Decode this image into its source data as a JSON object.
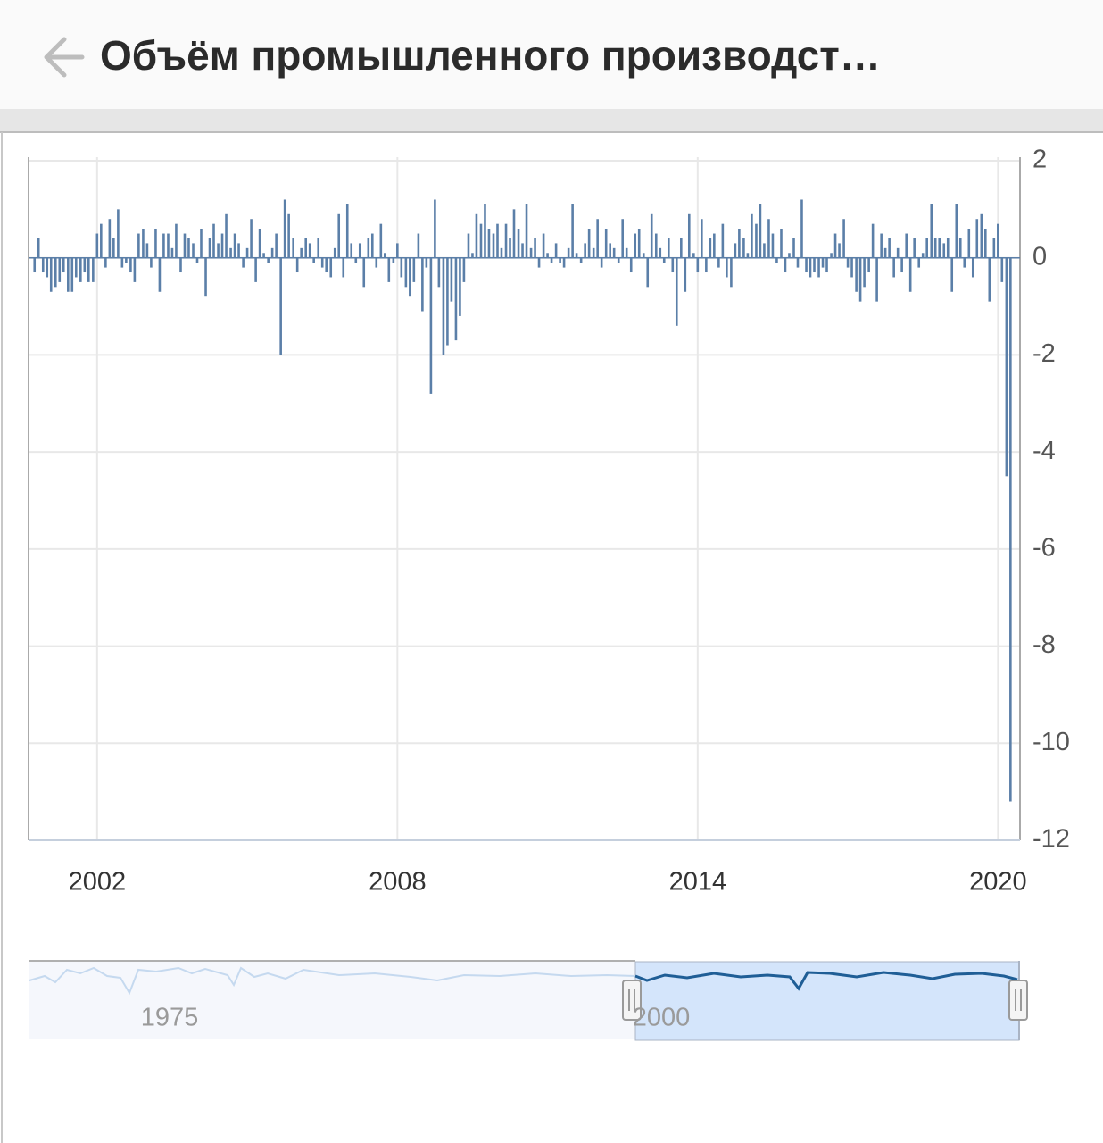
{
  "header": {
    "title": "Объём промышленного производст…"
  },
  "chart_data": {
    "type": "bar",
    "color": "#5b7fa8",
    "grid": true,
    "xlim": [
      2000.63,
      2020.44
    ],
    "xticks": [
      2002,
      2008,
      2014,
      2020
    ],
    "ylim": [
      -12,
      2
    ],
    "yticks": [
      2,
      0,
      -2,
      -4,
      -6,
      -8,
      -10,
      -12
    ],
    "x": [
      2000.75,
      2000.83,
      2000.92,
      2001.0,
      2001.08,
      2001.17,
      2001.25,
      2001.33,
      2001.42,
      2001.5,
      2001.58,
      2001.67,
      2001.75,
      2001.83,
      2001.92,
      2002.0,
      2002.08,
      2002.17,
      2002.25,
      2002.33,
      2002.42,
      2002.5,
      2002.58,
      2002.67,
      2002.75,
      2002.83,
      2002.92,
      2003.0,
      2003.08,
      2003.17,
      2003.25,
      2003.33,
      2003.42,
      2003.5,
      2003.58,
      2003.67,
      2003.75,
      2003.83,
      2003.92,
      2004.0,
      2004.08,
      2004.17,
      2004.25,
      2004.33,
      2004.42,
      2004.5,
      2004.58,
      2004.67,
      2004.75,
      2004.83,
      2004.92,
      2005.0,
      2005.08,
      2005.17,
      2005.25,
      2005.33,
      2005.42,
      2005.5,
      2005.58,
      2005.67,
      2005.75,
      2005.83,
      2005.92,
      2006.0,
      2006.08,
      2006.17,
      2006.25,
      2006.33,
      2006.42,
      2006.5,
      2006.58,
      2006.67,
      2006.75,
      2006.83,
      2006.92,
      2007.0,
      2007.08,
      2007.17,
      2007.25,
      2007.33,
      2007.42,
      2007.5,
      2007.58,
      2007.67,
      2007.75,
      2007.83,
      2007.92,
      2008.0,
      2008.08,
      2008.17,
      2008.25,
      2008.33,
      2008.42,
      2008.5,
      2008.58,
      2008.67,
      2008.75,
      2008.83,
      2008.92,
      2009.0,
      2009.08,
      2009.17,
      2009.25,
      2009.33,
      2009.42,
      2009.5,
      2009.58,
      2009.67,
      2009.75,
      2009.83,
      2009.92,
      2010.0,
      2010.08,
      2010.17,
      2010.25,
      2010.33,
      2010.42,
      2010.5,
      2010.58,
      2010.67,
      2010.75,
      2010.83,
      2010.92,
      2011.0,
      2011.08,
      2011.17,
      2011.25,
      2011.33,
      2011.42,
      2011.5,
      2011.58,
      2011.67,
      2011.75,
      2011.83,
      2011.92,
      2012.0,
      2012.08,
      2012.17,
      2012.25,
      2012.33,
      2012.42,
      2012.5,
      2012.58,
      2012.67,
      2012.75,
      2012.83,
      2012.92,
      2013.0,
      2013.08,
      2013.17,
      2013.25,
      2013.33,
      2013.42,
      2013.5,
      2013.58,
      2013.67,
      2013.75,
      2013.83,
      2013.92,
      2014.0,
      2014.08,
      2014.17,
      2014.25,
      2014.33,
      2014.42,
      2014.5,
      2014.58,
      2014.67,
      2014.75,
      2014.83,
      2014.92,
      2015.0,
      2015.08,
      2015.17,
      2015.25,
      2015.33,
      2015.42,
      2015.5,
      2015.58,
      2015.67,
      2015.75,
      2015.83,
      2015.92,
      2016.0,
      2016.08,
      2016.17,
      2016.25,
      2016.33,
      2016.42,
      2016.5,
      2016.58,
      2016.67,
      2016.75,
      2016.83,
      2016.92,
      2017.0,
      2017.08,
      2017.17,
      2017.25,
      2017.33,
      2017.42,
      2017.5,
      2017.58,
      2017.67,
      2017.75,
      2017.83,
      2017.92,
      2018.0,
      2018.08,
      2018.17,
      2018.25,
      2018.33,
      2018.42,
      2018.5,
      2018.58,
      2018.67,
      2018.75,
      2018.83,
      2018.92,
      2019.0,
      2019.08,
      2019.17,
      2019.25,
      2019.33,
      2019.42,
      2019.5,
      2019.58,
      2019.67,
      2019.75,
      2019.83,
      2019.92,
      2020.0,
      2020.08,
      2020.17,
      2020.25
    ],
    "values": [
      -0.3,
      0.4,
      -0.3,
      -0.4,
      -0.7,
      -0.6,
      -0.5,
      -0.3,
      -0.7,
      -0.7,
      -0.4,
      -0.5,
      -0.3,
      -0.5,
      -0.5,
      0.5,
      0.7,
      -0.2,
      0.8,
      0.4,
      1.0,
      -0.2,
      -0.1,
      -0.3,
      -0.5,
      0.5,
      0.6,
      0.3,
      -0.2,
      0.6,
      -0.7,
      0.5,
      0.5,
      0.2,
      0.7,
      -0.3,
      0.5,
      0.4,
      0.3,
      -0.1,
      0.6,
      -0.8,
      0.4,
      0.7,
      0.3,
      0.5,
      0.9,
      0.2,
      0.5,
      0.3,
      -0.2,
      0.2,
      0.8,
      -0.5,
      0.6,
      0.1,
      -0.1,
      0.2,
      0.5,
      -2.0,
      1.2,
      0.9,
      0.4,
      -0.3,
      0.2,
      0.4,
      0.3,
      -0.1,
      0.4,
      -0.2,
      -0.3,
      -0.4,
      0.2,
      0.9,
      -0.4,
      1.1,
      0.3,
      -0.1,
      0.3,
      -0.6,
      0.4,
      0.5,
      -0.2,
      0.7,
      0.1,
      -0.5,
      -0.1,
      0.3,
      -0.4,
      -0.6,
      -0.8,
      -0.5,
      0.5,
      -1.1,
      -0.2,
      -2.8,
      1.2,
      -0.6,
      -2.0,
      -1.8,
      -0.9,
      -1.7,
      -1.2,
      -0.5,
      0.5,
      0.1,
      0.9,
      0.7,
      1.1,
      0.6,
      0.5,
      0.7,
      0.2,
      0.7,
      0.4,
      1.0,
      0.6,
      0.3,
      1.1,
      0.2,
      0.4,
      -0.2,
      0.5,
      0.1,
      -0.1,
      0.3,
      -0.1,
      -0.2,
      0.2,
      1.1,
      0.1,
      -0.1,
      0.3,
      0.6,
      0.2,
      0.8,
      -0.2,
      0.6,
      0.3,
      0.2,
      -0.1,
      0.8,
      0.2,
      -0.3,
      0.5,
      0.6,
      0.1,
      -0.6,
      0.9,
      0.5,
      0.2,
      -0.1,
      0.4,
      -0.3,
      -1.4,
      0.4,
      -0.7,
      0.9,
      0.1,
      -0.3,
      0.8,
      -0.3,
      0.4,
      0.5,
      -0.2,
      0.7,
      -0.4,
      -0.6,
      0.3,
      0.6,
      0.4,
      0.1,
      0.9,
      0.7,
      1.1,
      0.3,
      0.8,
      0.5,
      -0.1,
      0.6,
      -0.3,
      0.1,
      0.4,
      -0.2,
      1.2,
      -0.3,
      -0.4,
      -0.3,
      -0.4,
      -0.2,
      -0.3,
      0.1,
      0.5,
      0.3,
      0.8,
      -0.2,
      -0.4,
      -0.7,
      -0.9,
      -0.6,
      -0.3,
      0.7,
      -0.9,
      0.5,
      0.2,
      0.4,
      -0.4,
      0.2,
      -0.3,
      0.5,
      -0.7,
      0.4,
      -0.2,
      0.1,
      0.4,
      1.1,
      0.4,
      0.4,
      0.3,
      0.4,
      -0.7,
      1.1,
      0.4,
      -0.2,
      0.6,
      -0.4,
      0.8,
      0.9,
      0.6,
      -0.9,
      0.4,
      0.7,
      -0.5,
      -4.5,
      -11.2
    ]
  },
  "navigator": {
    "labels": [
      "1975",
      "2000"
    ]
  }
}
